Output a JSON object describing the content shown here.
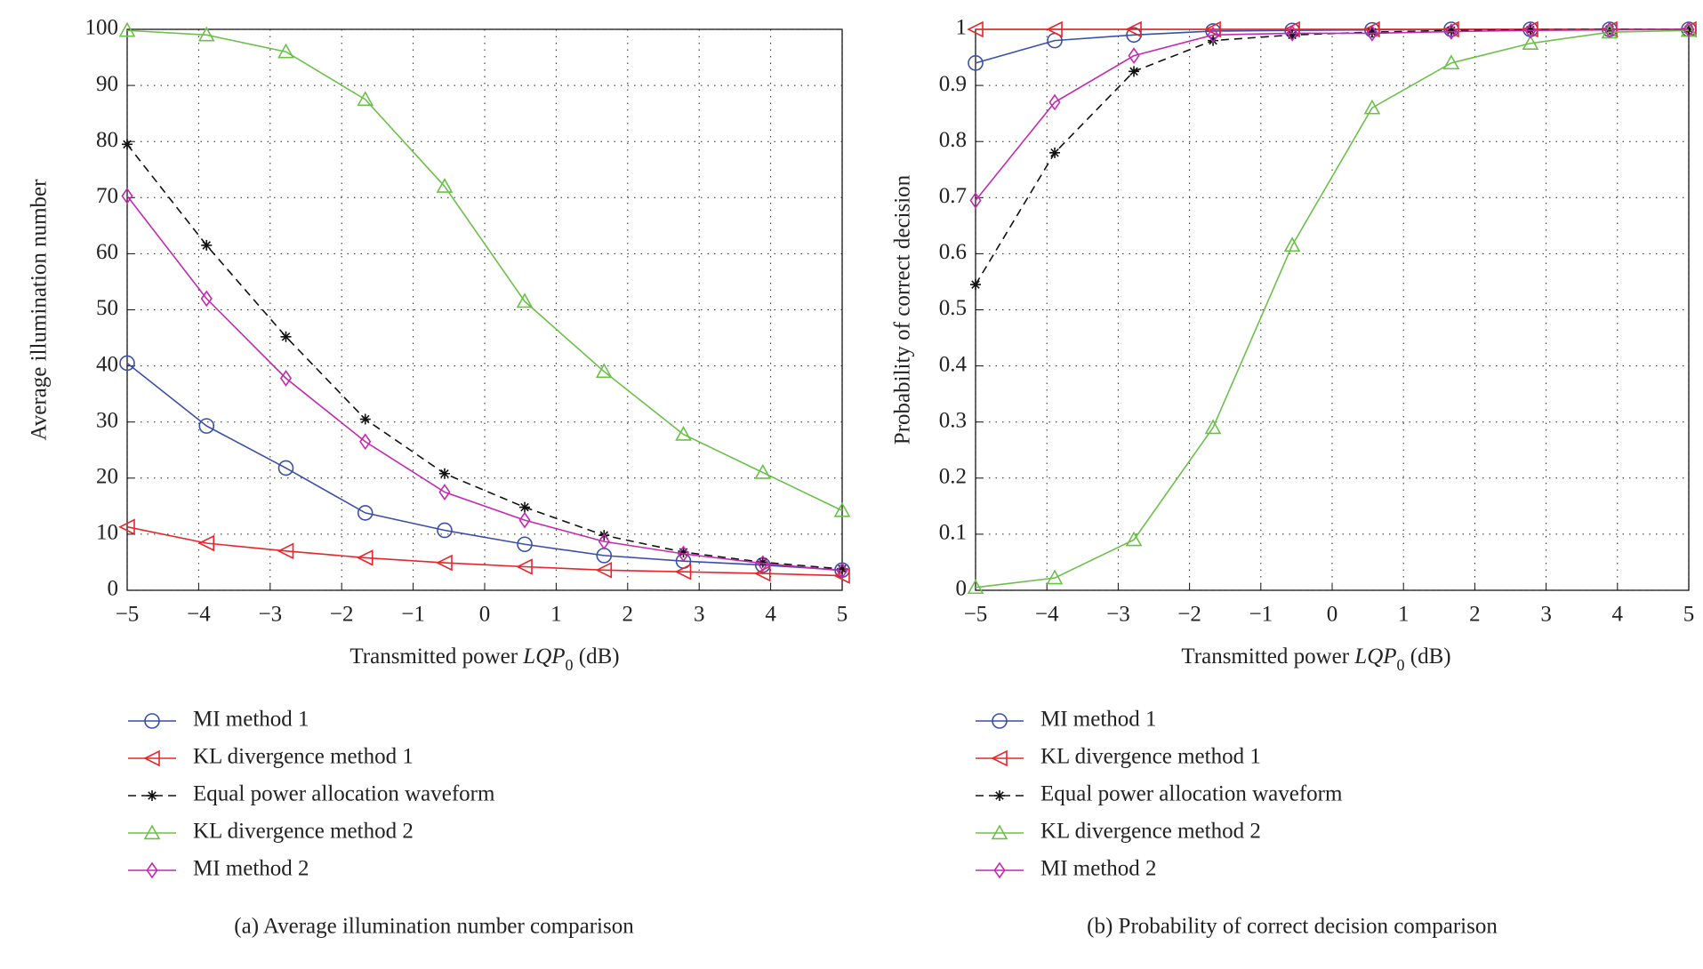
{
  "chart_data": [
    {
      "type": "line",
      "caption": "(a)  Average illumination number comparison",
      "xlabel": [
        "Transmitted power ",
        "LQP",
        "0",
        " (dB)"
      ],
      "ylabel": "Average illumination number",
      "x": [
        -5,
        -3.89,
        -2.78,
        -1.67,
        -0.56,
        0.56,
        1.67,
        2.78,
        3.89,
        5
      ],
      "xlim": [
        -5,
        5
      ],
      "xticks": [
        {
          "value": -5,
          "label": "−5"
        },
        {
          "value": -4,
          "label": "−4"
        },
        {
          "value": -3,
          "label": "−3"
        },
        {
          "value": -2,
          "label": "−2"
        },
        {
          "value": -1,
          "label": "−1"
        },
        0,
        1,
        2,
        3,
        4,
        5
      ],
      "ylim": [
        0,
        100
      ],
      "yticks": [
        0,
        10,
        20,
        30,
        40,
        50,
        60,
        70,
        80,
        90,
        100
      ],
      "grid": true,
      "series": [
        {
          "name": "MI method 1",
          "color": "#3a4fa8",
          "marker": "circle",
          "dashed": false,
          "values": [
            40.5,
            29.3,
            21.8,
            13.8,
            10.7,
            8.2,
            6.2,
            5.2,
            4.5,
            3.6
          ]
        },
        {
          "name": "KL divergence method 1",
          "color": "#e8262a",
          "marker": "triangle-left",
          "dashed": false,
          "values": [
            11.3,
            8.4,
            7.0,
            5.8,
            4.9,
            4.2,
            3.6,
            3.3,
            3.0,
            2.6
          ]
        },
        {
          "name": "Equal power allocation waveform",
          "color": "#111111",
          "marker": "star",
          "dashed": true,
          "values": [
            79.5,
            61.5,
            45.2,
            30.5,
            20.8,
            14.8,
            9.8,
            6.8,
            5.0,
            3.8
          ]
        },
        {
          "name": "KL divergence method 2",
          "color": "#6cc04a",
          "marker": "triangle-up",
          "dashed": false,
          "values": [
            99.8,
            99,
            96,
            87.5,
            72,
            51.5,
            39,
            27.8,
            21,
            14.2
          ]
        },
        {
          "name": "MI method 2",
          "color": "#c42ab0",
          "marker": "diamond",
          "dashed": false,
          "values": [
            70.3,
            52,
            37.8,
            26.5,
            17.5,
            12.5,
            8.7,
            6.5,
            4.8,
            3.5
          ]
        }
      ]
    },
    {
      "type": "line",
      "caption": "(b)  Probability of correct decision comparison",
      "xlabel": [
        "Transmitted power ",
        "LQP",
        "0",
        " (dB)"
      ],
      "ylabel": "Probability of correct decision",
      "x": [
        -5,
        -3.89,
        -2.78,
        -1.67,
        -0.56,
        0.56,
        1.67,
        2.78,
        3.89,
        5
      ],
      "xlim": [
        -5,
        5
      ],
      "xticks": [
        {
          "value": -5,
          "label": "−5"
        },
        {
          "value": -4,
          "label": "−4"
        },
        {
          "value": -3,
          "label": "−3"
        },
        {
          "value": -2,
          "label": "−2"
        },
        {
          "value": -1,
          "label": "−1"
        },
        0,
        1,
        2,
        3,
        4,
        5
      ],
      "ylim": [
        0,
        1
      ],
      "yticks": [
        0,
        0.1,
        0.2,
        0.3,
        0.4,
        0.5,
        0.6,
        0.7,
        0.8,
        0.9,
        1
      ],
      "grid": true,
      "series": [
        {
          "name": "MI method 1",
          "color": "#3a4fa8",
          "marker": "circle",
          "dashed": false,
          "values": [
            0.94,
            0.98,
            0.99,
            0.997,
            0.998,
            0.999,
            1,
            1,
            1,
            1
          ]
        },
        {
          "name": "KL divergence method 1",
          "color": "#e8262a",
          "marker": "triangle-left",
          "dashed": false,
          "values": [
            1,
            1,
            1,
            1,
            1,
            1,
            1,
            1,
            1,
            1
          ]
        },
        {
          "name": "Equal power allocation waveform",
          "color": "#111111",
          "marker": "star",
          "dashed": true,
          "values": [
            0.545,
            0.78,
            0.925,
            0.98,
            0.99,
            0.995,
            0.998,
            0.999,
            1,
            1
          ]
        },
        {
          "name": "KL divergence method 2",
          "color": "#6cc04a",
          "marker": "triangle-up",
          "dashed": false,
          "values": [
            0.005,
            0.022,
            0.09,
            0.29,
            0.615,
            0.86,
            0.94,
            0.975,
            0.995,
            0.998
          ]
        },
        {
          "name": "MI method 2",
          "color": "#c42ab0",
          "marker": "diamond",
          "dashed": false,
          "values": [
            0.695,
            0.87,
            0.953,
            0.99,
            0.993,
            0.993,
            0.996,
            0.998,
            0.999,
            1
          ]
        }
      ]
    }
  ]
}
